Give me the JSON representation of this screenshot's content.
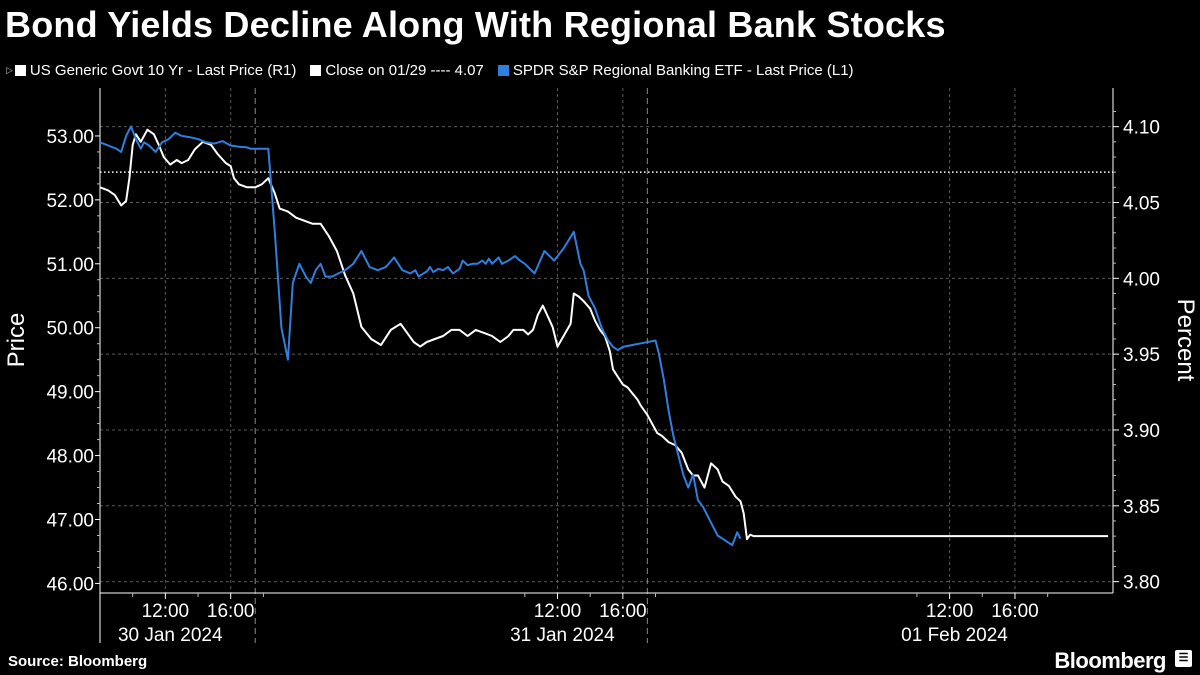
{
  "title": "Bond Yields Decline Along With Regional Bank Stocks",
  "legend": {
    "items": [
      {
        "label": "US Generic Govt 10 Yr - Last Price (R1)",
        "color": "#ffffff"
      },
      {
        "label": "Close on 01/29 ---- 4.07",
        "color": "#ffffff"
      },
      {
        "label": "SPDR S&P Regional Banking ETF - Last Price (L1)",
        "color": "#2f7fdf"
      }
    ]
  },
  "footer": {
    "source": "Source:  Bloomberg",
    "brand": "Bloomberg"
  },
  "chart_data": {
    "type": "line",
    "title": "Bond Yields Decline Along With Regional Bank Stocks",
    "left_axis": {
      "label": "Price",
      "range": [
        45.85,
        53.75
      ],
      "ticks": [
        46.0,
        47.0,
        48.0,
        49.0,
        50.0,
        51.0,
        52.0,
        53.0
      ],
      "tick_labels": [
        "46.00",
        "47.00",
        "48.00",
        "49.00",
        "50.00",
        "51.00",
        "52.00",
        "53.00"
      ]
    },
    "right_axis": {
      "label": "Percent",
      "range": [
        3.7925,
        4.1255
      ],
      "ticks": [
        3.8,
        3.85,
        3.9,
        3.95,
        4.0,
        4.05,
        4.1
      ],
      "tick_labels": [
        "3.80",
        "3.85",
        "3.90",
        "3.95",
        "4.00",
        "4.05",
        "4.10"
      ]
    },
    "x_axis": {
      "range_hours": [
        8,
        70
      ],
      "time_ticks": [
        {
          "t": 12,
          "label": "12:00"
        },
        {
          "t": 16,
          "label": "16:00"
        },
        {
          "t": 36,
          "label": "12:00"
        },
        {
          "t": 40,
          "label": "16:00"
        },
        {
          "t": 60,
          "label": "12:00"
        },
        {
          "t": 64,
          "label": "16:00"
        }
      ],
      "minor_ticks": [
        10,
        14,
        18,
        34,
        38,
        42,
        58,
        62,
        66
      ],
      "dates": [
        {
          "t": 12.3,
          "label": "30 Jan 2024"
        },
        {
          "t": 36.3,
          "label": "31 Jan 2024"
        },
        {
          "t": 60.3,
          "label": "01 Feb 2024"
        }
      ],
      "day_separators": [
        17.5,
        41.5
      ]
    },
    "reference_line": {
      "label": "Close on 01/29",
      "value": 4.07,
      "axis": "right",
      "style": "dotted"
    },
    "grid": true,
    "legend_position": "top-left",
    "series": [
      {
        "name": "US Generic Govt 10 Yr - Last Price (R1)",
        "axis": "right",
        "color": "#ffffff",
        "x": [
          8.0,
          8.5,
          8.9,
          9.3,
          9.6,
          9.8,
          10.0,
          10.2,
          10.5,
          10.9,
          11.3,
          11.6,
          11.9,
          12.3,
          12.7,
          13.0,
          13.4,
          13.8,
          14.3,
          14.8,
          15.2,
          15.7,
          16.0,
          16.2,
          16.5,
          17.0,
          17.5,
          17.9,
          18.3,
          18.7,
          19.0,
          19.5,
          20.0,
          20.5,
          21.0,
          21.5,
          22.0,
          22.5,
          23.0,
          23.5,
          24.0,
          24.6,
          25.2,
          25.8,
          26.4,
          26.8,
          27.2,
          27.6,
          28.0,
          28.5,
          29.0,
          29.5,
          30.0,
          30.5,
          31.0,
          31.5,
          32.0,
          32.5,
          33.0,
          33.3,
          33.6,
          33.9,
          34.2,
          34.5,
          34.8,
          35.1,
          35.4,
          35.7,
          36.0,
          36.8,
          37.0,
          37.3,
          37.6,
          38.0,
          38.3,
          38.6,
          38.9,
          39.2,
          39.4,
          39.7,
          40.0,
          40.3,
          40.6,
          40.9,
          41.1,
          41.5,
          41.8,
          42.1,
          42.4,
          42.8,
          43.2,
          43.6,
          44.0,
          44.3,
          44.6,
          45.0,
          45.4,
          45.8,
          46.1,
          46.5,
          46.9,
          47.2,
          47.4,
          47.6,
          47.8,
          48.0,
          48.5,
          58.0,
          69.7
        ],
        "y": [
          4.06,
          4.058,
          4.055,
          4.048,
          4.051,
          4.066,
          4.088,
          4.095,
          4.09,
          4.098,
          4.095,
          4.088,
          4.08,
          4.075,
          4.078,
          4.076,
          4.078,
          4.085,
          4.09,
          4.088,
          4.082,
          4.076,
          4.074,
          4.066,
          4.062,
          4.06,
          4.06,
          4.062,
          4.066,
          4.056,
          4.046,
          4.044,
          4.04,
          4.038,
          4.036,
          4.036,
          4.028,
          4.018,
          4.002,
          3.99,
          3.968,
          3.96,
          3.956,
          3.966,
          3.97,
          3.964,
          3.958,
          3.955,
          3.958,
          3.96,
          3.962,
          3.966,
          3.966,
          3.962,
          3.966,
          3.964,
          3.962,
          3.958,
          3.962,
          3.966,
          3.966,
          3.966,
          3.963,
          3.966,
          3.976,
          3.982,
          3.975,
          3.968,
          3.955,
          3.97,
          3.99,
          3.988,
          3.985,
          3.98,
          3.972,
          3.966,
          3.962,
          3.952,
          3.94,
          3.935,
          3.93,
          3.928,
          3.924,
          3.92,
          3.916,
          3.91,
          3.904,
          3.898,
          3.896,
          3.892,
          3.89,
          3.885,
          3.874,
          3.87,
          3.87,
          3.862,
          3.878,
          3.874,
          3.866,
          3.863,
          3.856,
          3.853,
          3.845,
          3.828,
          3.831,
          3.83,
          3.83,
          3.83,
          3.83
        ]
      },
      {
        "name": "SPDR S&P Regional Banking ETF - Last Price (L1)",
        "axis": "left",
        "color": "#2f7fdf",
        "x": [
          8.0,
          8.5,
          9.0,
          9.3,
          9.6,
          9.9,
          10.2,
          10.5,
          10.7,
          11.0,
          11.4,
          11.8,
          12.2,
          12.6,
          13.0,
          13.5,
          14.0,
          14.5,
          15.0,
          15.5,
          16.0,
          16.5,
          17.0,
          17.2,
          17.5,
          17.9,
          18.3,
          18.7,
          19.1,
          19.5,
          19.8,
          20.2,
          20.6,
          20.9,
          21.2,
          21.5,
          21.8,
          22.2,
          22.6,
          23.0,
          23.5,
          24.0,
          24.5,
          25.0,
          25.5,
          26.0,
          26.5,
          27.0,
          27.3,
          27.5,
          27.8,
          28.0,
          28.2,
          28.4,
          28.7,
          29.0,
          29.3,
          29.6,
          30.0,
          30.2,
          30.5,
          30.8,
          31.1,
          31.4,
          31.6,
          31.8,
          32.0,
          32.2,
          32.4,
          32.6,
          33.0,
          33.4,
          33.7,
          34.0,
          34.6,
          35.2,
          35.8,
          36.4,
          37.0,
          37.4,
          37.6,
          37.9,
          38.3,
          38.7,
          39.1,
          39.4,
          39.7,
          40.0,
          41.0,
          42.0,
          42.2,
          42.5,
          42.8,
          43.1,
          43.4,
          43.7,
          44.0,
          44.3,
          44.6,
          44.9,
          45.2,
          45.5,
          45.8,
          46.1,
          46.4,
          46.7,
          47.0,
          47.2
        ],
        "y": [
          52.9,
          52.85,
          52.8,
          52.75,
          53.0,
          53.15,
          52.95,
          52.8,
          52.9,
          52.85,
          52.75,
          52.9,
          52.95,
          53.05,
          53.0,
          52.98,
          52.95,
          52.9,
          52.88,
          52.92,
          52.85,
          52.83,
          52.82,
          52.8,
          52.8,
          52.8,
          52.8,
          51.5,
          50.0,
          49.5,
          50.7,
          51.0,
          50.8,
          50.7,
          50.9,
          51.0,
          50.8,
          50.8,
          50.85,
          50.9,
          51.0,
          51.2,
          50.95,
          50.9,
          50.95,
          51.1,
          50.9,
          50.85,
          50.9,
          50.8,
          50.85,
          50.88,
          50.95,
          50.87,
          50.92,
          50.9,
          50.95,
          50.85,
          50.92,
          51.05,
          50.98,
          51.0,
          51.0,
          51.05,
          51.0,
          51.08,
          51.0,
          51.05,
          51.1,
          51.0,
          51.05,
          51.12,
          51.05,
          51.0,
          50.85,
          51.2,
          51.05,
          51.25,
          51.5,
          51.0,
          50.9,
          50.5,
          50.3,
          50.0,
          49.8,
          49.7,
          49.65,
          49.7,
          49.75,
          49.8,
          49.6,
          49.2,
          48.7,
          48.3,
          48.0,
          47.7,
          47.5,
          47.7,
          47.3,
          47.2,
          47.05,
          46.9,
          46.75,
          46.7,
          46.65,
          46.6,
          46.8,
          46.7
        ]
      }
    ]
  }
}
